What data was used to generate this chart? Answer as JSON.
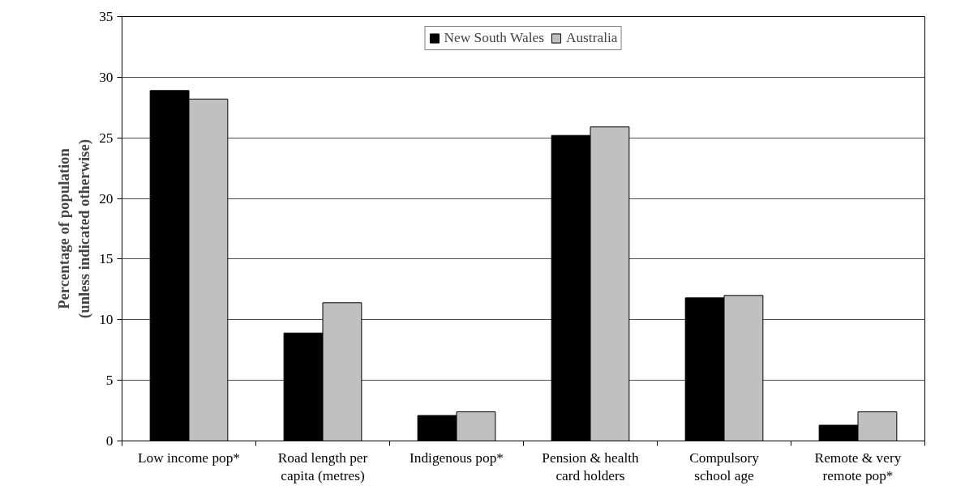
{
  "chart_data": {
    "type": "bar",
    "ylabel": "Percentage of population (unless indicated otherwise)",
    "categories": [
      "Low income pop*",
      "Road length per capita (metres)",
      "Indigenous pop*",
      "Pension & health card holders",
      "Compulsory school age",
      "Remote & very remote pop*"
    ],
    "series": [
      {
        "name": "New South Wales",
        "color": "#000000",
        "values": [
          28.9,
          8.9,
          2.1,
          25.2,
          11.8,
          1.3
        ]
      },
      {
        "name": "Australia",
        "color": "#c0c0c0",
        "values": [
          28.2,
          11.4,
          2.4,
          25.9,
          12.0,
          2.4
        ]
      }
    ],
    "ylim": [
      0,
      35
    ],
    "yticks": [
      0,
      5,
      10,
      15,
      20,
      25,
      30,
      35
    ],
    "grid": "y",
    "legend": "top"
  }
}
